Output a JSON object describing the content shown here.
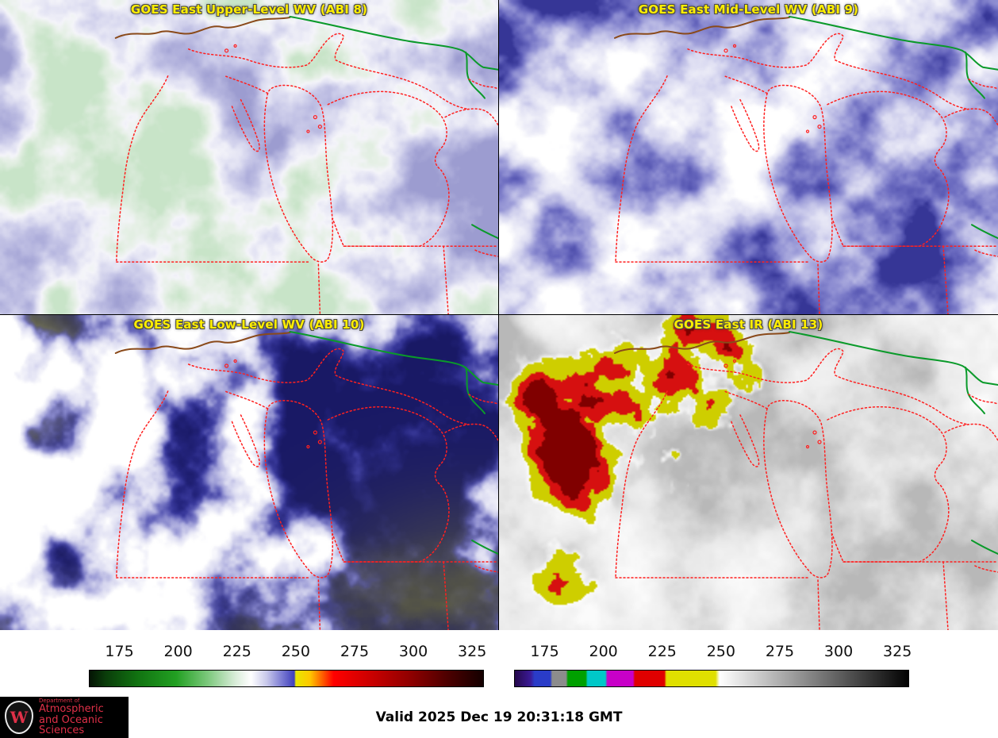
{
  "panels": [
    {
      "id": "abi8",
      "title": "GOES East Upper-Level WV (ABI 8)"
    },
    {
      "id": "abi9",
      "title": "GOES East Mid-Level WV (ABI 9)"
    },
    {
      "id": "abi10",
      "title": "GOES East Low-Level WV (ABI 10)"
    },
    {
      "id": "abi13",
      "title": "GOES East IR (ABI 13)"
    }
  ],
  "colorbars": {
    "ticks": [
      "175",
      "200",
      "225",
      "250",
      "275",
      "300",
      "325"
    ],
    "wv_gradient": [
      [
        0,
        "#041404"
      ],
      [
        4,
        "#0a3c0a"
      ],
      [
        12,
        "#117211"
      ],
      [
        22,
        "#22a022"
      ],
      [
        30,
        "#7cc87c"
      ],
      [
        37,
        "#d8ecd8"
      ],
      [
        41,
        "#ffffff"
      ],
      [
        45,
        "#c8c8ea"
      ],
      [
        49,
        "#7878d2"
      ],
      [
        52,
        "#4040bc"
      ],
      [
        52.4,
        "#e8e800"
      ],
      [
        56,
        "#ffc800"
      ],
      [
        59,
        "#ff6400"
      ],
      [
        62,
        "#ff0000"
      ],
      [
        72,
        "#c80000"
      ],
      [
        82,
        "#8c0000"
      ],
      [
        92,
        "#460000"
      ],
      [
        100,
        "#140000"
      ]
    ],
    "ir_gradient": [
      [
        0,
        "#26084c"
      ],
      [
        4,
        "#3a1a96"
      ],
      [
        5,
        "#2a3cc8"
      ],
      [
        9,
        "#2a3cc8"
      ],
      [
        9.5,
        "#8c8c8c"
      ],
      [
        13,
        "#8c8c8c"
      ],
      [
        13.5,
        "#00a000"
      ],
      [
        18,
        "#00a000"
      ],
      [
        18.5,
        "#00c8c8"
      ],
      [
        23,
        "#00c8c8"
      ],
      [
        23.5,
        "#c800c8"
      ],
      [
        30,
        "#c800c8"
      ],
      [
        30.5,
        "#e00000"
      ],
      [
        38,
        "#e00000"
      ],
      [
        38.5,
        "#e0e000"
      ],
      [
        51,
        "#e0e000"
      ],
      [
        52,
        "#ffffff"
      ],
      [
        100,
        "#020202"
      ]
    ]
  },
  "footer": {
    "valid_time": "Valid 2025 Dec 19 20:31:18 GMT",
    "logo": {
      "letter": "W",
      "dept": "Department of",
      "line1": "Atmospheric",
      "line2": "and Oceanic Sciences"
    }
  },
  "colors": {
    "title_text": "#ffee00",
    "state_boundary": "#ff2020",
    "intl_border": "#0a9a2a",
    "river": "#8a4a1a",
    "logo_red": "#e03048"
  }
}
